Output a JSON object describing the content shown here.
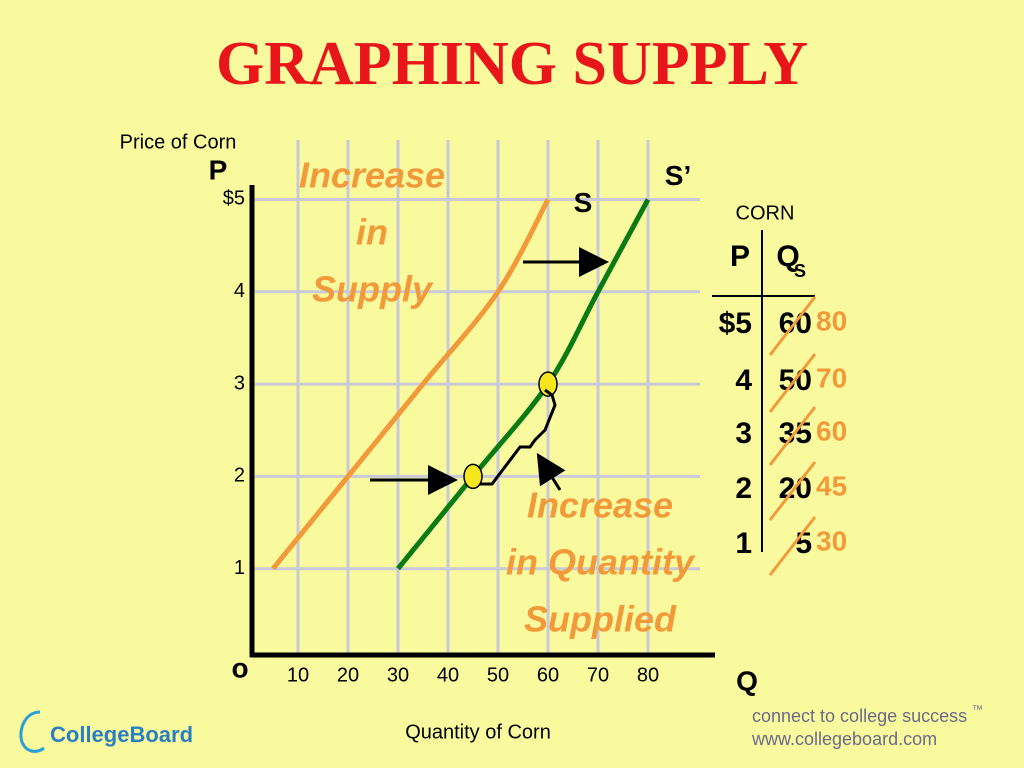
{
  "chart_data": {
    "type": "line",
    "title": "GRAPHING SUPPLY",
    "x_label": "Quantity of Corn",
    "y_label": "Price of Corn",
    "y_axis_letter": "P",
    "x_axis_letter": "Q",
    "origin_label": "o",
    "xlim": [
      0,
      93
    ],
    "ylim": [
      0,
      5.2
    ],
    "xticks": [
      10,
      20,
      30,
      40,
      50,
      60,
      70,
      80
    ],
    "yticks": [
      1,
      2,
      3,
      4,
      {
        "value": 5,
        "label": "$5"
      }
    ],
    "grid": true,
    "series": [
      {
        "name": "S",
        "color": "#f29a3a",
        "x": [
          5,
          20,
          35,
          50,
          60
        ],
        "values": [
          1,
          2,
          3,
          4,
          5
        ]
      },
      {
        "name": "S’",
        "color": "#0a7a12",
        "x": [
          30,
          45,
          60,
          70,
          80
        ],
        "values": [
          1,
          2,
          3,
          4,
          5
        ],
        "highlight_indices": [
          1,
          2
        ],
        "highlight_color": "#f5e61e"
      }
    ],
    "annotations": [
      {
        "lines": [
          "Increase",
          "in",
          "Supply"
        ]
      },
      {
        "lines": [
          "Increase",
          "in Quantity",
          "Supplied"
        ]
      }
    ]
  },
  "table": {
    "title": "CORN",
    "price_header": "P",
    "quantity_header": "Q",
    "quantity_subscript": "S",
    "prices": [
      "$5",
      "4",
      "3",
      "2",
      "1"
    ]
  },
  "footer": {
    "logo": "CollegeBoard",
    "tagline": "connect to college success",
    "trademark": "™",
    "url": "www.collegeboard.com"
  }
}
